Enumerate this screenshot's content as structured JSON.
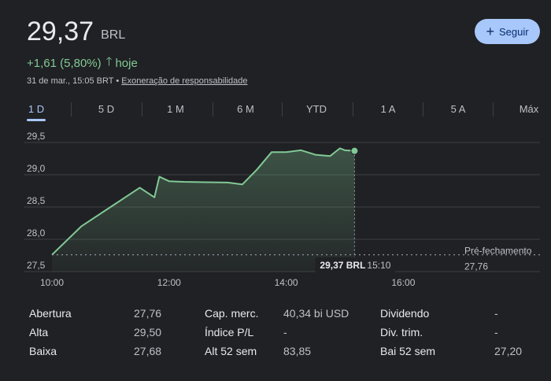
{
  "header": {
    "price": "29,37",
    "currency": "BRL",
    "change": "+1,61 (5,80%)",
    "change_period": "hoje",
    "timestamp": "31 de mar., 15:05 BRT",
    "separator": "•",
    "disclaimer": "Exoneração de responsabilidade",
    "follow_label": "Seguir",
    "follow_icon": "plus-icon",
    "up_arrow_icon": "arrow-up-icon",
    "positive_color": "#81c995",
    "accent_color": "#a8c7fa"
  },
  "tabs": [
    {
      "label": "1 D",
      "active": true
    },
    {
      "label": "5 D",
      "active": false
    },
    {
      "label": "1 M",
      "active": false
    },
    {
      "label": "6 M",
      "active": false
    },
    {
      "label": "YTD",
      "active": false
    },
    {
      "label": "1 A",
      "active": false
    },
    {
      "label": "5 A",
      "active": false
    },
    {
      "label": "Máx",
      "active": false
    }
  ],
  "chart_data": {
    "type": "area",
    "x_unit": "time",
    "x": [
      "10:00",
      "10:30",
      "11:00",
      "11:15",
      "11:30",
      "11:45",
      "11:50",
      "12:00",
      "12:15",
      "13:00",
      "13:15",
      "13:30",
      "13:45",
      "14:00",
      "14:15",
      "14:30",
      "14:45",
      "14:55",
      "15:00",
      "15:10"
    ],
    "y": [
      27.76,
      28.2,
      28.5,
      28.65,
      28.8,
      28.65,
      28.97,
      28.9,
      28.89,
      28.88,
      28.85,
      29.08,
      29.35,
      29.35,
      29.38,
      29.31,
      29.29,
      29.41,
      29.38,
      29.37
    ],
    "yticks": [
      "29,5",
      "29,0",
      "28,5",
      "28,0",
      "27,5"
    ],
    "ytick_values": [
      29.5,
      29.0,
      28.5,
      28.0,
      27.5
    ],
    "xticks": [
      "10:00",
      "12:00",
      "14:00",
      "16:00"
    ],
    "xtick_values": [
      "10:00",
      "12:00",
      "14:00",
      "16:00"
    ],
    "ylim": [
      27.5,
      29.5
    ],
    "xlim": [
      "10:00",
      "18:20"
    ],
    "previous_close": 27.76,
    "previous_close_label": "Pré-fechamento",
    "previous_close_value": "27,76",
    "cursor_price": "29,37 BRL",
    "cursor_time": "15:10",
    "line_color": "#81c995",
    "grid": true
  },
  "stats": [
    {
      "label": "Abertura",
      "value": "27,76"
    },
    {
      "label": "Alta",
      "value": "29,50"
    },
    {
      "label": "Baixa",
      "value": "27,68"
    },
    {
      "label": "Cap. merc.",
      "value": "40,34 bi USD"
    },
    {
      "label": "Índice P/L",
      "value": "-"
    },
    {
      "label": "Alt 52 sem",
      "value": "83,85"
    },
    {
      "label": "Dividendo",
      "value": "-"
    },
    {
      "label": "Div. trim.",
      "value": "-"
    },
    {
      "label": "Bai 52 sem",
      "value": "27,20"
    }
  ]
}
